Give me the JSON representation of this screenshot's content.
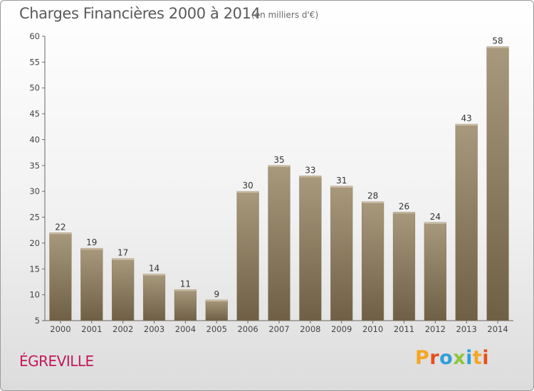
{
  "header": {
    "title": "Charges Financières 2000 à 2014",
    "subtitle": "(en milliers d'€)"
  },
  "footer": {
    "commune": "ÉGREVILLE",
    "logo_text": "Proxiti"
  },
  "colors": {
    "bar_top": "#a8987c",
    "bar_bottom": "#6f5f45",
    "logo_letters": [
      "#f5a623",
      "#e84e1b",
      "#2f9fd8",
      "#8cc63f",
      "#2f9fd8",
      "#f5a623",
      "#e84e1b"
    ]
  },
  "chart_data": {
    "type": "bar",
    "title": "Charges Financières 2000 à 2014",
    "subtitle": "(en milliers d'€)",
    "xlabel": "",
    "ylabel": "",
    "categories": [
      "2000",
      "2001",
      "2002",
      "2003",
      "2004",
      "2005",
      "2006",
      "2007",
      "2008",
      "2009",
      "2010",
      "2011",
      "2012",
      "2013",
      "2014"
    ],
    "values": [
      22,
      19,
      17,
      14,
      11,
      9,
      30,
      35,
      33,
      31,
      28,
      26,
      24,
      43,
      58
    ],
    "ylim": [
      5,
      60
    ],
    "yticks": [
      5,
      10,
      15,
      20,
      25,
      30,
      35,
      40,
      45,
      50,
      55,
      60
    ],
    "grid": false,
    "legend": "none"
  }
}
